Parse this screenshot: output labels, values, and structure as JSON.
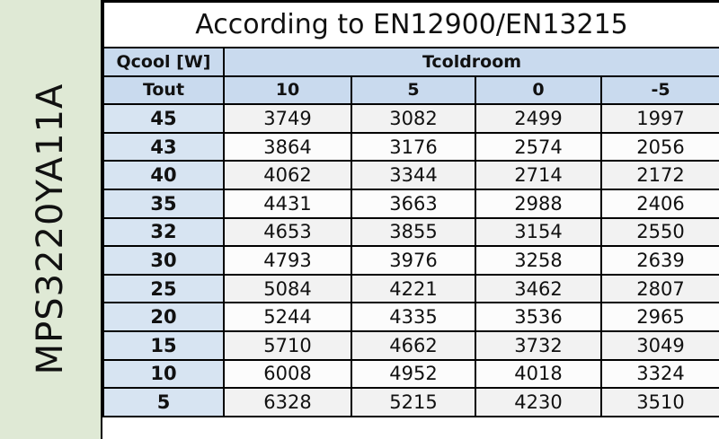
{
  "model": "MPS3220YA11A",
  "title": "According to EN12900/EN13215",
  "corner_label": "Qcool [W]",
  "row_header": "Tout",
  "column_group": "Tcoldroom",
  "columns": [
    "10",
    "5",
    "0",
    "-5"
  ],
  "colors": {
    "side": "#dfe9d5",
    "header": "#c9daee"
  },
  "rows": [
    {
      "tout": "45",
      "values": [
        "3749",
        "3082",
        "2499",
        "1997"
      ]
    },
    {
      "tout": "43",
      "values": [
        "3864",
        "3176",
        "2574",
        "2056"
      ]
    },
    {
      "tout": "40",
      "values": [
        "4062",
        "3344",
        "2714",
        "2172"
      ]
    },
    {
      "tout": "35",
      "values": [
        "4431",
        "3663",
        "2988",
        "2406"
      ]
    },
    {
      "tout": "32",
      "values": [
        "4653",
        "3855",
        "3154",
        "2550"
      ]
    },
    {
      "tout": "30",
      "values": [
        "4793",
        "3976",
        "3258",
        "2639"
      ]
    },
    {
      "tout": "25",
      "values": [
        "5084",
        "4221",
        "3462",
        "2807"
      ]
    },
    {
      "tout": "20",
      "values": [
        "5244",
        "4335",
        "3536",
        "2965"
      ]
    },
    {
      "tout": "15",
      "values": [
        "5710",
        "4662",
        "3732",
        "3049"
      ]
    },
    {
      "tout": "10",
      "values": [
        "6008",
        "4952",
        "4018",
        "3324"
      ]
    },
    {
      "tout": "5",
      "values": [
        "6328",
        "5215",
        "4230",
        "3510"
      ]
    }
  ]
}
